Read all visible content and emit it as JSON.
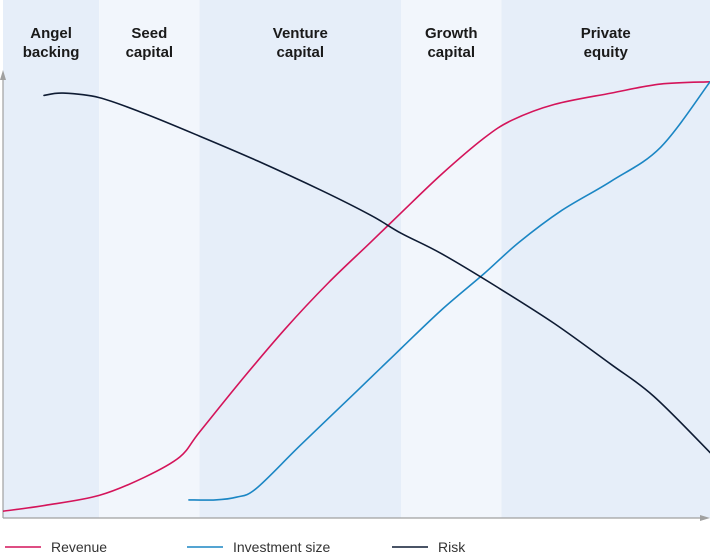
{
  "chart_data": {
    "type": "line",
    "title": "",
    "xlabel": "",
    "ylabel": "",
    "grid": false,
    "legend_position": "bottom",
    "xlim": [
      0,
      100
    ],
    "ylim": [
      0,
      100
    ],
    "stages": [
      {
        "lines": [
          "Angel",
          "backing"
        ],
        "start": 0,
        "end": 13.6,
        "shade": "#e6eef9"
      },
      {
        "lines": [
          "Seed",
          "capital"
        ],
        "start": 13.6,
        "end": 27.8,
        "shade": "#f2f6fc"
      },
      {
        "lines": [
          "Venture",
          "capital"
        ],
        "start": 27.8,
        "end": 56.3,
        "shade": "#e6eef9"
      },
      {
        "lines": [
          "Growth",
          "capital"
        ],
        "start": 56.3,
        "end": 70.5,
        "shade": "#f2f6fc"
      },
      {
        "lines": [
          "Private",
          "equity"
        ],
        "start": 70.5,
        "end": 100,
        "shade": "#e6eef9"
      }
    ],
    "series": [
      {
        "name": "Revenue",
        "color": "#d4145a",
        "points": [
          [
            0,
            1.5
          ],
          [
            6,
            2.8
          ],
          [
            13.6,
            5
          ],
          [
            20,
            9
          ],
          [
            25,
            13.5
          ],
          [
            27.8,
            19
          ],
          [
            34,
            31
          ],
          [
            40,
            42
          ],
          [
            46,
            52
          ],
          [
            52,
            61
          ],
          [
            56.3,
            67.5
          ],
          [
            62,
            76
          ],
          [
            68,
            84
          ],
          [
            72,
            88
          ],
          [
            78,
            91.5
          ],
          [
            86,
            94
          ],
          [
            93,
            96
          ],
          [
            100,
            96.5
          ]
        ]
      },
      {
        "name": "Investment size",
        "color": "#1b86c4",
        "points": [
          [
            26.3,
            4
          ],
          [
            30,
            4
          ],
          [
            33,
            4.6
          ],
          [
            35.8,
            6.5
          ],
          [
            42,
            16
          ],
          [
            50,
            28
          ],
          [
            56.3,
            37.5
          ],
          [
            62,
            46
          ],
          [
            68,
            54
          ],
          [
            73,
            61
          ],
          [
            79,
            68
          ],
          [
            86,
            74.5
          ],
          [
            93,
            82
          ],
          [
            100,
            96.5
          ]
        ]
      },
      {
        "name": "Risk",
        "color": "#0e1b33",
        "points": [
          [
            5.8,
            93.5
          ],
          [
            8.5,
            94
          ],
          [
            13.6,
            93
          ],
          [
            20,
            89.5
          ],
          [
            27.8,
            84.5
          ],
          [
            36,
            79
          ],
          [
            45,
            72.5
          ],
          [
            52,
            67
          ],
          [
            56.3,
            63
          ],
          [
            62,
            58.5
          ],
          [
            70,
            51
          ],
          [
            78,
            43
          ],
          [
            86,
            34
          ],
          [
            92,
            27
          ],
          [
            100,
            14.5
          ]
        ]
      }
    ]
  }
}
